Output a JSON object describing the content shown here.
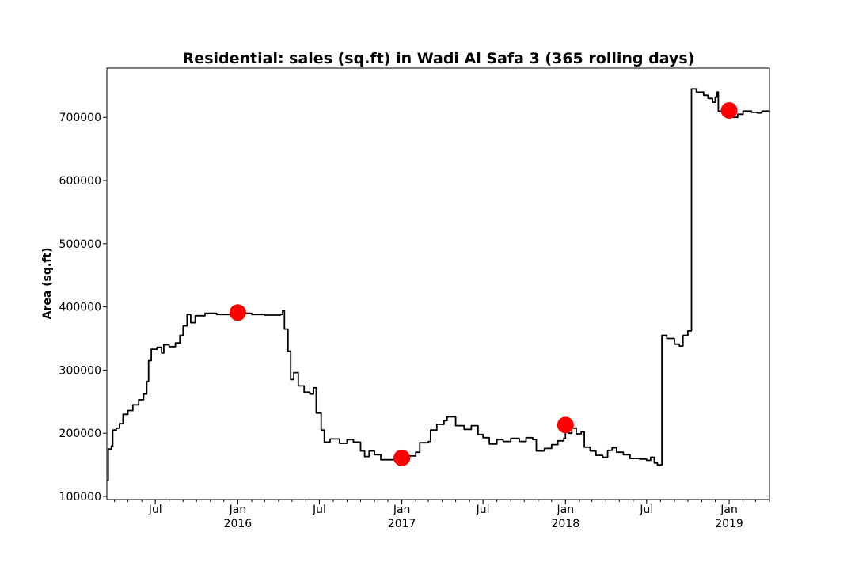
{
  "chart_data": {
    "type": "line",
    "title": "Residential: sales (sq.ft) in Wadi Al Safa 3 (365 rolling days)",
    "xlabel": "",
    "ylabel": "Area (sq.ft)",
    "xlim": [
      "2015-03-15",
      "2019-04-01"
    ],
    "ylim": [
      95000,
      778000
    ],
    "grid": false,
    "legend": "none",
    "line_color": "#000000",
    "marker_color": "#ff0000",
    "y_ticks": [
      {
        "value": 100000,
        "label": "100000"
      },
      {
        "value": 200000,
        "label": "200000"
      },
      {
        "value": 300000,
        "label": "300000"
      },
      {
        "value": 400000,
        "label": "400000"
      },
      {
        "value": 500000,
        "label": "500000"
      },
      {
        "value": 600000,
        "label": "600000"
      },
      {
        "value": 700000,
        "label": "700000"
      }
    ],
    "x_ticks": [
      {
        "date": "2015-07-01",
        "label": "Jul",
        "sublabel": ""
      },
      {
        "date": "2016-01-01",
        "label": "Jan",
        "sublabel": "2016"
      },
      {
        "date": "2016-07-01",
        "label": "Jul",
        "sublabel": ""
      },
      {
        "date": "2017-01-01",
        "label": "Jan",
        "sublabel": "2017"
      },
      {
        "date": "2017-07-01",
        "label": "Jul",
        "sublabel": ""
      },
      {
        "date": "2018-01-01",
        "label": "Jan",
        "sublabel": "2018"
      },
      {
        "date": "2018-07-01",
        "label": "Jul",
        "sublabel": ""
      },
      {
        "date": "2019-01-01",
        "label": "Jan",
        "sublabel": "2019"
      }
    ],
    "series": [
      {
        "points": [
          [
            "2015-03-15",
            125000
          ],
          [
            "2015-03-18",
            175000
          ],
          [
            "2015-03-25",
            180000
          ],
          [
            "2015-03-28",
            205000
          ],
          [
            "2015-04-05",
            208000
          ],
          [
            "2015-04-12",
            215000
          ],
          [
            "2015-04-20",
            230000
          ],
          [
            "2015-05-01",
            236000
          ],
          [
            "2015-05-12",
            245000
          ],
          [
            "2015-05-25",
            253000
          ],
          [
            "2015-06-05",
            262000
          ],
          [
            "2015-06-12",
            282000
          ],
          [
            "2015-06-16",
            315000
          ],
          [
            "2015-06-22",
            333000
          ],
          [
            "2015-07-05",
            336000
          ],
          [
            "2015-07-15",
            327000
          ],
          [
            "2015-07-20",
            340000
          ],
          [
            "2015-08-01",
            337000
          ],
          [
            "2015-08-15",
            343000
          ],
          [
            "2015-08-25",
            355000
          ],
          [
            "2015-09-01",
            370000
          ],
          [
            "2015-09-10",
            388000
          ],
          [
            "2015-09-18",
            375000
          ],
          [
            "2015-09-28",
            386000
          ],
          [
            "2015-10-20",
            390000
          ],
          [
            "2015-11-15",
            388000
          ],
          [
            "2016-01-01",
            390000
          ],
          [
            "2016-02-01",
            388000
          ],
          [
            "2016-03-01",
            387000
          ],
          [
            "2016-04-05",
            388000
          ],
          [
            "2016-04-10",
            394000
          ],
          [
            "2016-04-14",
            365000
          ],
          [
            "2016-04-22",
            330000
          ],
          [
            "2016-04-28",
            285000
          ],
          [
            "2016-05-05",
            296000
          ],
          [
            "2016-05-15",
            275000
          ],
          [
            "2016-05-28",
            265000
          ],
          [
            "2016-06-10",
            262000
          ],
          [
            "2016-06-18",
            272000
          ],
          [
            "2016-06-24",
            232000
          ],
          [
            "2016-07-05",
            205000
          ],
          [
            "2016-07-12",
            186000
          ],
          [
            "2016-07-25",
            191000
          ],
          [
            "2016-08-15",
            184000
          ],
          [
            "2016-09-01",
            190000
          ],
          [
            "2016-09-15",
            186000
          ],
          [
            "2016-10-01",
            172000
          ],
          [
            "2016-10-10",
            163000
          ],
          [
            "2016-10-20",
            172000
          ],
          [
            "2016-11-01",
            166000
          ],
          [
            "2016-11-15",
            158000
          ],
          [
            "2016-12-15",
            160000
          ],
          [
            "2017-01-01",
            162000
          ],
          [
            "2017-01-10",
            158000
          ],
          [
            "2017-01-18",
            164000
          ],
          [
            "2017-02-01",
            170000
          ],
          [
            "2017-02-10",
            185000
          ],
          [
            "2017-03-01",
            187000
          ],
          [
            "2017-03-06",
            205000
          ],
          [
            "2017-03-20",
            214000
          ],
          [
            "2017-04-05",
            220000
          ],
          [
            "2017-04-12",
            226000
          ],
          [
            "2017-05-01",
            212000
          ],
          [
            "2017-05-20",
            206000
          ],
          [
            "2017-06-05",
            212000
          ],
          [
            "2017-06-20",
            198000
          ],
          [
            "2017-07-01",
            193000
          ],
          [
            "2017-07-15",
            183000
          ],
          [
            "2017-08-01",
            190000
          ],
          [
            "2017-08-15",
            187000
          ],
          [
            "2017-09-01",
            192000
          ],
          [
            "2017-09-20",
            187000
          ],
          [
            "2017-10-05",
            193000
          ],
          [
            "2017-10-20",
            190000
          ],
          [
            "2017-10-28",
            172000
          ],
          [
            "2017-11-15",
            176000
          ],
          [
            "2017-12-01",
            182000
          ],
          [
            "2017-12-15",
            188000
          ],
          [
            "2017-12-28",
            192000
          ],
          [
            "2018-01-01",
            213000
          ],
          [
            "2018-01-08",
            200000
          ],
          [
            "2018-01-15",
            208000
          ],
          [
            "2018-01-25",
            199000
          ],
          [
            "2018-02-05",
            202000
          ],
          [
            "2018-02-12",
            178000
          ],
          [
            "2018-02-25",
            172000
          ],
          [
            "2018-03-10",
            165000
          ],
          [
            "2018-03-25",
            162000
          ],
          [
            "2018-04-05",
            173000
          ],
          [
            "2018-04-15",
            177000
          ],
          [
            "2018-04-25",
            170000
          ],
          [
            "2018-05-10",
            166000
          ],
          [
            "2018-05-25",
            160000
          ],
          [
            "2018-06-15",
            159000
          ],
          [
            "2018-07-01",
            157000
          ],
          [
            "2018-07-10",
            162000
          ],
          [
            "2018-07-18",
            153000
          ],
          [
            "2018-07-25",
            150000
          ],
          [
            "2018-08-01",
            150000
          ],
          [
            "2018-08-04",
            355000
          ],
          [
            "2018-08-15",
            350000
          ],
          [
            "2018-09-01",
            341000
          ],
          [
            "2018-09-12",
            338000
          ],
          [
            "2018-09-20",
            355000
          ],
          [
            "2018-10-01",
            362000
          ],
          [
            "2018-10-06",
            362000
          ],
          [
            "2018-10-09",
            745000
          ],
          [
            "2018-10-20",
            740000
          ],
          [
            "2018-11-05",
            735000
          ],
          [
            "2018-11-15",
            730000
          ],
          [
            "2018-11-25",
            724000
          ],
          [
            "2018-12-01",
            732000
          ],
          [
            "2018-12-05",
            740000
          ],
          [
            "2018-12-08",
            710000
          ],
          [
            "2018-12-20",
            712000
          ],
          [
            "2019-01-01",
            711000
          ],
          [
            "2019-01-10",
            700000
          ],
          [
            "2019-01-20",
            705000
          ],
          [
            "2019-02-01",
            710000
          ],
          [
            "2019-02-20",
            708000
          ],
          [
            "2019-03-05",
            707000
          ],
          [
            "2019-03-15",
            710000
          ],
          [
            "2019-04-01",
            708000
          ]
        ]
      }
    ],
    "markers": [
      {
        "date": "2016-01-01",
        "value": 391000
      },
      {
        "date": "2017-01-01",
        "value": 161000
      },
      {
        "date": "2018-01-01",
        "value": 213000
      },
      {
        "date": "2019-01-01",
        "value": 711000
      }
    ]
  }
}
